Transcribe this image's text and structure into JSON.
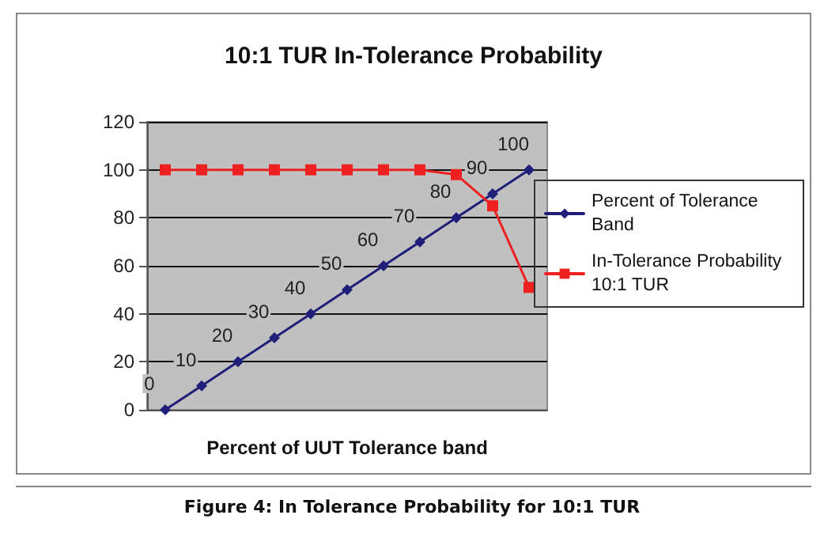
{
  "chart_data": {
    "type": "line",
    "title": "10:1 TUR In-Tolerance Probability",
    "xlabel": "Percent of UUT Tolerance band",
    "categories": [
      null,
      null,
      null,
      null,
      null,
      null,
      null,
      null,
      null,
      null,
      null
    ],
    "series": [
      {
        "name": "Percent of Tolerance Band",
        "color": "#1f1f7a",
        "marker": "diamond",
        "values": [
          0,
          10,
          20,
          30,
          40,
          50,
          60,
          70,
          80,
          90,
          100
        ],
        "value_labels": [
          "0",
          "10",
          "20",
          "30",
          "40",
          "50",
          "60",
          "70",
          "80",
          "90",
          "100"
        ]
      },
      {
        "name": "In-Tolerance Probability 10:1 TUR",
        "color": "#ee2020",
        "marker": "square",
        "values": [
          100,
          100,
          100,
          100,
          100,
          100,
          100,
          100,
          98,
          85,
          51
        ]
      }
    ],
    "ylim": [
      0,
      120
    ],
    "yticks": [
      0,
      20,
      40,
      60,
      80,
      100,
      120
    ],
    "grid": "y",
    "legend": "right",
    "line_style": "solid",
    "annotations": [
      "Figure 4: In Tolerance Probability for 10:1 TUR"
    ]
  }
}
